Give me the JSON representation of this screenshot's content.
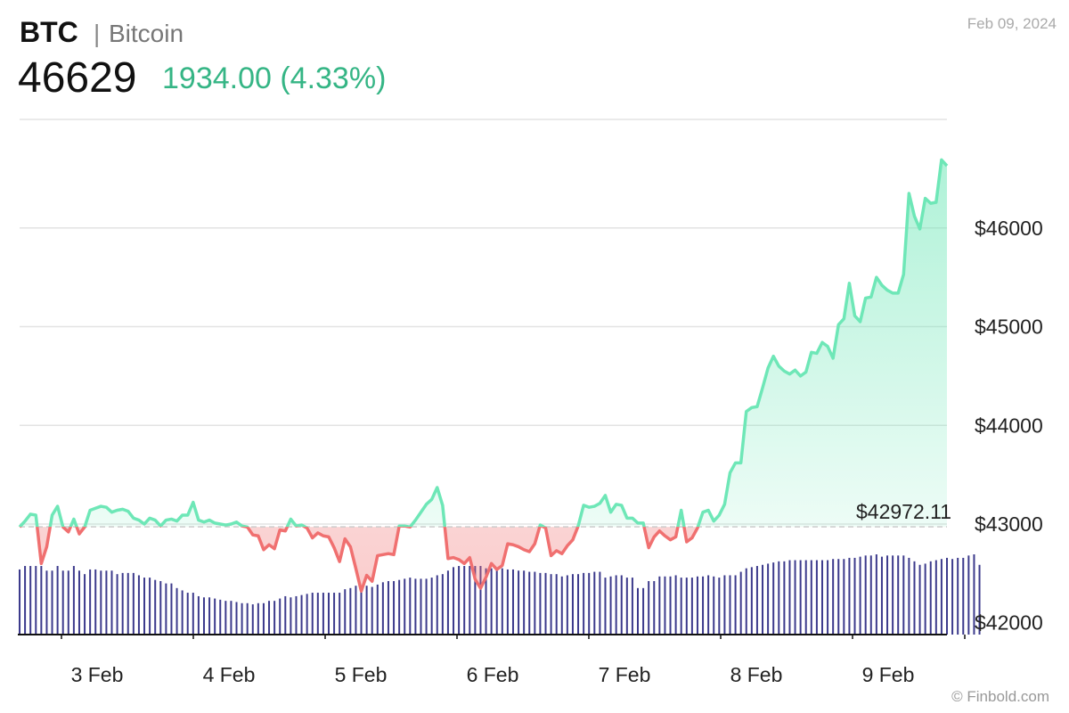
{
  "header": {
    "ticker": "BTC",
    "separator": "|",
    "name": "Bitcoin",
    "price": "46629",
    "change": "1934.00 (4.33%)",
    "date": "Feb 09, 2024"
  },
  "footer": {
    "credit": "© Finbold.com"
  },
  "chart_data": {
    "type": "area",
    "title": "",
    "xlabel": "",
    "ylabel": "",
    "x_ticks": [
      "3 Feb",
      "4 Feb",
      "5 Feb",
      "6 Feb",
      "7 Feb",
      "8 Feb",
      "9 Feb"
    ],
    "y_ticks": [
      "$42000",
      "$43000",
      "$44000",
      "$45000",
      "$46000"
    ],
    "ylim": [
      41880,
      47100
    ],
    "baseline": {
      "label": "$42972.11",
      "value": 42972.11
    },
    "colors": {
      "above": "#6ee7b7",
      "below": "#f07070",
      "volume": "#3c3a8c"
    },
    "series": [
      {
        "values": [
          42970,
          43030,
          43100,
          43090,
          42600,
          42770,
          43090,
          43180,
          42970,
          42920,
          43050,
          42900,
          42970,
          43140,
          43160,
          43180,
          43170,
          43120,
          43140,
          43150,
          43130,
          43060,
          43040,
          43000,
          43060,
          43040,
          42980,
          43040,
          43050,
          43030,
          43090,
          43090,
          43220,
          43040,
          43020,
          43040,
          43010,
          43000,
          42990,
          43000,
          43020,
          42980,
          42970,
          42890,
          42880,
          42740,
          42790,
          42750,
          42940,
          42930,
          43050,
          42980,
          42990,
          42960,
          42860,
          42910,
          42880,
          42870,
          42760,
          42620,
          42850,
          42770,
          42550,
          42320,
          42480,
          42420,
          42680,
          42690,
          42700,
          42690,
          42980,
          42980,
          42970,
          43040,
          43120,
          43200,
          43250,
          43370,
          43190,
          42650,
          42660,
          42640,
          42600,
          42660,
          42440,
          42350,
          42460,
          42600,
          42540,
          42580,
          42800,
          42790,
          42770,
          42740,
          42720,
          42800,
          42990,
          42960,
          42680,
          42730,
          42700,
          42780,
          42840,
          42980,
          43190,
          43170,
          43180,
          43210,
          43290,
          43120,
          43200,
          43190,
          43060,
          43060,
          43010,
          43010,
          42760,
          42870,
          42930,
          42880,
          42840,
          42870,
          43140,
          42820,
          42860,
          42960,
          43120,
          43140,
          43030,
          43090,
          43200,
          43520,
          43620,
          43620,
          44140,
          44180,
          44190,
          44380,
          44580,
          44700,
          44600,
          44550,
          44520,
          44560,
          44500,
          44540,
          44740,
          44730,
          44840,
          44800,
          44680,
          45020,
          45080,
          45440,
          45110,
          45050,
          45290,
          45300,
          45500,
          45420,
          45370,
          45340,
          45340,
          45530,
          46350,
          46120,
          45990,
          46300,
          46250,
          46260,
          46690,
          46630
        ]
      }
    ],
    "volume": [
      56,
      59,
      59,
      59,
      59,
      55,
      55,
      59,
      55,
      55,
      59,
      55,
      52,
      56,
      56,
      55,
      55,
      55,
      52,
      53,
      53,
      53,
      51,
      49,
      49,
      47,
      46,
      44,
      44,
      40,
      38,
      36,
      36,
      33,
      32,
      32,
      31,
      30,
      29,
      29,
      28,
      27,
      27,
      26,
      27,
      27,
      29,
      29,
      31,
      33,
      32,
      33,
      34,
      35,
      36,
      36,
      36,
      36,
      36,
      36,
      39,
      40,
      42,
      42,
      42,
      41,
      43,
      45,
      46,
      46,
      47,
      48,
      49,
      48,
      48,
      48,
      49,
      51,
      52,
      55,
      58,
      59,
      59,
      59,
      59,
      59,
      57,
      57,
      57,
      57,
      56,
      56,
      55,
      55,
      54,
      54,
      53,
      53,
      52,
      52,
      50,
      51,
      52,
      52,
      53,
      53,
      54,
      54,
      49,
      50,
      51,
      51,
      49,
      49,
      40,
      40,
      46,
      46,
      50,
      50,
      50,
      51,
      49,
      49,
      49,
      50,
      50,
      51,
      50,
      49,
      51,
      51,
      51,
      54,
      57,
      58,
      59,
      60,
      61,
      62,
      63,
      63,
      64,
      64,
      64,
      64,
      64,
      64,
      64,
      64,
      65,
      65,
      65,
      66,
      66,
      67,
      68,
      68,
      69,
      67,
      68,
      68,
      68,
      68,
      66,
      63,
      60,
      61,
      63,
      64,
      65,
      66,
      65,
      66,
      66,
      68,
      69,
      60
    ]
  }
}
